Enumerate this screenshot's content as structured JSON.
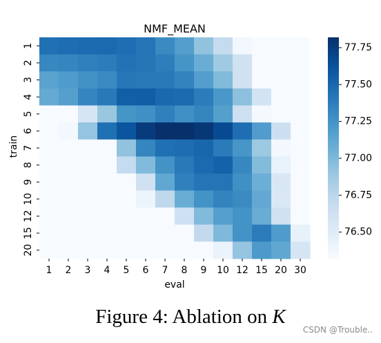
{
  "chart_data": {
    "type": "heatmap",
    "title": "NMF_MEAN",
    "xlabel": "eval",
    "ylabel": "train",
    "x_categories": [
      "1",
      "2",
      "3",
      "4",
      "5",
      "6",
      "7",
      "8",
      "9",
      "10",
      "12",
      "15",
      "20",
      "30"
    ],
    "y_categories": [
      "1",
      "2",
      "3",
      "4",
      "5",
      "6",
      "7",
      "8",
      "9",
      "10",
      "12",
      "15",
      "20"
    ],
    "values": [
      [
        77.45,
        77.47,
        77.48,
        77.49,
        77.46,
        77.43,
        77.3,
        77.18,
        76.93,
        76.7,
        76.36,
        76.29,
        76.29,
        76.29
      ],
      [
        77.32,
        77.33,
        77.36,
        77.38,
        77.44,
        77.43,
        77.37,
        77.24,
        77.08,
        76.88,
        76.62,
        76.29,
        76.29,
        76.29
      ],
      [
        77.15,
        77.2,
        77.26,
        77.3,
        77.41,
        77.4,
        77.4,
        77.34,
        77.18,
        76.99,
        76.62,
        76.29,
        76.29,
        76.29
      ],
      [
        77.1,
        77.17,
        77.33,
        77.4,
        77.55,
        77.56,
        77.5,
        77.48,
        77.38,
        77.22,
        76.95,
        76.6,
        76.29,
        76.29
      ],
      [
        76.29,
        76.29,
        76.58,
        76.9,
        77.24,
        77.27,
        77.36,
        77.27,
        77.33,
        77.17,
        76.64,
        76.34,
        76.29,
        76.29
      ],
      [
        76.29,
        76.35,
        76.92,
        77.45,
        77.61,
        77.76,
        77.82,
        77.82,
        77.78,
        77.67,
        77.46,
        77.19,
        76.65,
        76.29
      ],
      [
        76.29,
        76.29,
        76.29,
        76.29,
        76.93,
        77.33,
        77.45,
        77.47,
        77.51,
        77.39,
        77.23,
        76.89,
        76.36,
        76.29
      ],
      [
        76.29,
        76.29,
        76.29,
        76.29,
        76.7,
        76.99,
        77.25,
        77.4,
        77.49,
        77.53,
        77.32,
        76.98,
        76.43,
        76.29
      ],
      [
        76.29,
        76.29,
        76.29,
        76.29,
        76.29,
        76.62,
        77.12,
        77.36,
        77.43,
        77.43,
        77.27,
        77.07,
        76.55,
        76.29
      ],
      [
        76.29,
        76.29,
        76.29,
        76.29,
        76.29,
        76.4,
        76.73,
        77.08,
        77.25,
        77.34,
        77.3,
        77.11,
        76.54,
        76.29
      ],
      [
        76.29,
        76.29,
        76.29,
        76.29,
        76.29,
        76.29,
        76.29,
        76.63,
        76.99,
        77.17,
        77.25,
        77.08,
        76.62,
        76.29
      ],
      [
        76.29,
        76.29,
        76.29,
        76.29,
        76.29,
        76.29,
        76.29,
        76.29,
        76.71,
        77.0,
        77.25,
        77.38,
        77.2,
        76.44
      ],
      [
        76.29,
        76.29,
        76.29,
        76.29,
        76.29,
        76.29,
        76.29,
        76.29,
        76.29,
        76.42,
        76.92,
        77.21,
        77.12,
        76.58
      ]
    ],
    "colorbar": {
      "range": [
        76.32,
        77.82
      ],
      "ticks": [
        "76.50",
        "76.75",
        "77.00",
        "77.25",
        "77.50",
        "77.75"
      ],
      "tick_values": [
        76.5,
        76.75,
        77.0,
        77.25,
        77.5,
        77.75
      ],
      "colormap": "Blues"
    }
  },
  "caption": {
    "prefix": "Figure 4: Ablation on ",
    "var": "K"
  },
  "watermark": "CSDN @Trouble.."
}
